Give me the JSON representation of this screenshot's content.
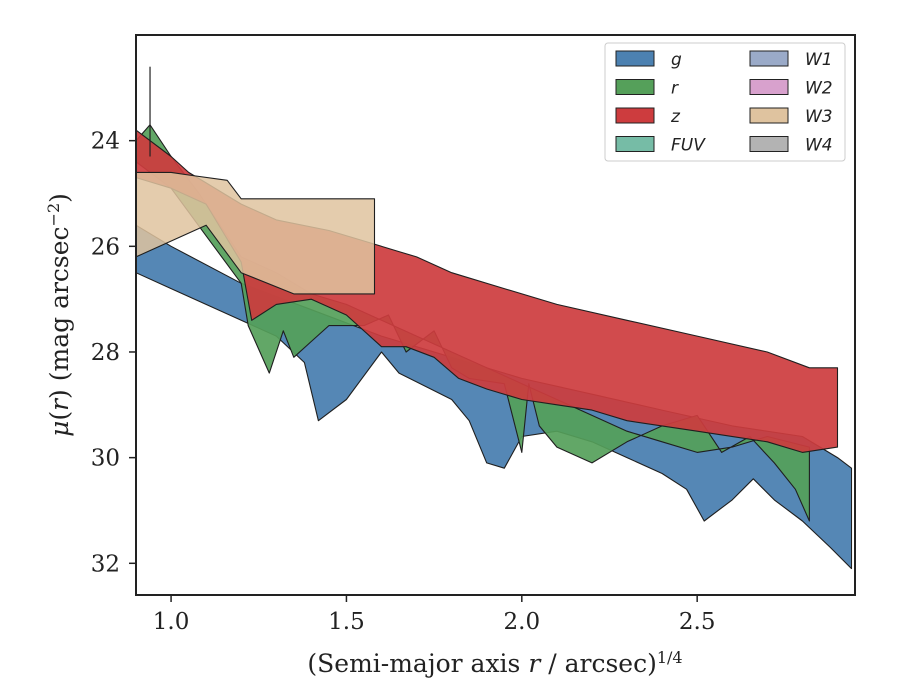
{
  "chart_data": {
    "type": "area",
    "xlabel": "(Semi-major axis r / arcsec)^{1/4}",
    "xlabel_parts": {
      "pre": "(Semi-major axis ",
      "var": "r",
      "post": " / arcsec)",
      "sup": "1/4"
    },
    "ylabel": "μ(r) (mag arcsec^{-2})",
    "ylabel_parts": {
      "mu": "μ",
      "paren_open": "(",
      "var": "r",
      "paren_close": ")",
      "unit": " (mag arcsec",
      "sup": "−2",
      "close": ")"
    },
    "xlim": [
      0.9,
      2.95
    ],
    "ylim": [
      32.6,
      22.0
    ],
    "y_inverted": true,
    "xticks": [
      1.0,
      1.5,
      2.0,
      2.5
    ],
    "xtick_labels": [
      "1.0",
      "1.5",
      "2.0",
      "2.5"
    ],
    "yticks": [
      24,
      26,
      28,
      30,
      32
    ],
    "ytick_labels": [
      "24",
      "26",
      "28",
      "30",
      "32"
    ],
    "grid": false,
    "legend": {
      "placement": "top-right",
      "columns": 2
    },
    "series": [
      {
        "name": "g",
        "color": "#4c81b1",
        "upper": [
          [
            0.9,
            25.6
          ],
          [
            1.0,
            26.0
          ],
          [
            1.2,
            26.7
          ],
          [
            1.4,
            27.2
          ],
          [
            1.6,
            27.7
          ],
          [
            1.8,
            28.1
          ],
          [
            2.0,
            28.5
          ],
          [
            2.2,
            28.8
          ],
          [
            2.4,
            29.1
          ],
          [
            2.6,
            29.4
          ],
          [
            2.8,
            29.6
          ],
          [
            2.9,
            30.0
          ],
          [
            2.94,
            30.2
          ]
        ],
        "lower": [
          [
            0.9,
            26.5
          ],
          [
            1.0,
            26.8
          ],
          [
            1.2,
            27.4
          ],
          [
            1.3,
            27.7
          ],
          [
            1.38,
            28.2
          ],
          [
            1.42,
            29.3
          ],
          [
            1.5,
            28.9
          ],
          [
            1.6,
            28.0
          ],
          [
            1.65,
            28.4
          ],
          [
            1.8,
            28.9
          ],
          [
            1.85,
            29.3
          ],
          [
            1.9,
            30.1
          ],
          [
            1.95,
            30.2
          ],
          [
            2.0,
            29.6
          ],
          [
            2.1,
            29.5
          ],
          [
            2.2,
            29.7
          ],
          [
            2.3,
            30.0
          ],
          [
            2.4,
            30.3
          ],
          [
            2.47,
            30.6
          ],
          [
            2.52,
            31.2
          ],
          [
            2.6,
            30.8
          ],
          [
            2.66,
            30.4
          ],
          [
            2.72,
            30.8
          ],
          [
            2.8,
            31.2
          ],
          [
            2.88,
            31.7
          ],
          [
            2.94,
            32.1
          ]
        ]
      },
      {
        "name": "r",
        "color": "#55a05a",
        "upper": [
          [
            0.9,
            24.0
          ],
          [
            0.94,
            23.7
          ],
          [
            1.0,
            24.3
          ],
          [
            1.08,
            25.0
          ],
          [
            1.15,
            25.7
          ],
          [
            1.2,
            26.2
          ],
          [
            1.3,
            26.5
          ],
          [
            1.4,
            26.9
          ],
          [
            1.5,
            27.1
          ],
          [
            1.6,
            27.4
          ],
          [
            1.7,
            27.7
          ],
          [
            1.8,
            28.0
          ],
          [
            1.9,
            28.3
          ],
          [
            2.0,
            28.6
          ],
          [
            2.1,
            28.9
          ],
          [
            2.2,
            29.2
          ],
          [
            2.3,
            29.5
          ],
          [
            2.4,
            29.7
          ],
          [
            2.5,
            29.9
          ],
          [
            2.6,
            29.8
          ],
          [
            2.7,
            29.6
          ],
          [
            2.82,
            29.8
          ]
        ],
        "lower": [
          [
            0.9,
            24.4
          ],
          [
            1.0,
            24.9
          ],
          [
            1.1,
            25.8
          ],
          [
            1.2,
            26.7
          ],
          [
            1.22,
            27.5
          ],
          [
            1.28,
            28.4
          ],
          [
            1.32,
            27.6
          ],
          [
            1.35,
            28.1
          ],
          [
            1.4,
            27.8
          ],
          [
            1.45,
            27.5
          ],
          [
            1.55,
            27.5
          ],
          [
            1.62,
            27.3
          ],
          [
            1.67,
            28.0
          ],
          [
            1.75,
            27.6
          ],
          [
            1.8,
            28.3
          ],
          [
            1.85,
            28.5
          ],
          [
            1.95,
            28.6
          ],
          [
            2.0,
            29.9
          ],
          [
            2.02,
            28.6
          ],
          [
            2.05,
            29.4
          ],
          [
            2.1,
            29.8
          ],
          [
            2.2,
            30.1
          ],
          [
            2.3,
            29.7
          ],
          [
            2.4,
            29.4
          ],
          [
            2.5,
            29.2
          ],
          [
            2.57,
            29.9
          ],
          [
            2.65,
            29.6
          ],
          [
            2.72,
            30.1
          ],
          [
            2.78,
            30.6
          ],
          [
            2.82,
            31.2
          ]
        ]
      },
      {
        "name": "z",
        "color": "#cd3c3e",
        "upper": [
          [
            0.9,
            23.8
          ],
          [
            1.0,
            24.3
          ],
          [
            1.05,
            24.6
          ],
          [
            1.1,
            24.8
          ],
          [
            1.2,
            25.2
          ],
          [
            1.3,
            25.5
          ],
          [
            1.45,
            25.7
          ],
          [
            1.55,
            25.9
          ],
          [
            1.65,
            26.1
          ],
          [
            1.7,
            26.2
          ],
          [
            1.8,
            26.5
          ],
          [
            1.95,
            26.8
          ],
          [
            2.1,
            27.1
          ],
          [
            2.3,
            27.4
          ],
          [
            2.5,
            27.7
          ],
          [
            2.7,
            28.0
          ],
          [
            2.82,
            28.3
          ],
          [
            2.9,
            28.3
          ]
        ],
        "lower": [
          [
            0.9,
            24.7
          ],
          [
            1.0,
            24.9
          ],
          [
            1.1,
            25.2
          ],
          [
            1.2,
            26.3
          ],
          [
            1.23,
            27.4
          ],
          [
            1.3,
            27.1
          ],
          [
            1.4,
            27.0
          ],
          [
            1.5,
            27.3
          ],
          [
            1.6,
            27.9
          ],
          [
            1.67,
            27.9
          ],
          [
            1.75,
            28.1
          ],
          [
            1.82,
            28.5
          ],
          [
            1.9,
            28.7
          ],
          [
            2.0,
            28.9
          ],
          [
            2.1,
            29.0
          ],
          [
            2.2,
            29.1
          ],
          [
            2.3,
            29.3
          ],
          [
            2.5,
            29.5
          ],
          [
            2.7,
            29.7
          ],
          [
            2.8,
            29.9
          ],
          [
            2.9,
            29.8
          ]
        ]
      },
      {
        "name": "FUV",
        "color": "#76bca6"
      },
      {
        "name": "W1",
        "color": "#9aaac8"
      },
      {
        "name": "W2",
        "color": "#d8a1cd"
      },
      {
        "name": "W3",
        "color": "#dfc39f",
        "upper": [
          [
            0.9,
            24.6
          ],
          [
            1.0,
            24.6
          ],
          [
            1.05,
            24.65
          ],
          [
            1.16,
            24.75
          ],
          [
            1.2,
            25.1
          ],
          [
            1.4,
            25.1
          ],
          [
            1.58,
            25.1
          ]
        ],
        "lower": [
          [
            0.9,
            26.2
          ],
          [
            1.1,
            25.6
          ],
          [
            1.2,
            26.5
          ],
          [
            1.35,
            26.9
          ],
          [
            1.58,
            26.9
          ]
        ]
      },
      {
        "name": "W4",
        "color": "#b3b3b3"
      }
    ],
    "errorbar": {
      "x": 0.94,
      "y_low": 22.6,
      "y_high": 24.3
    }
  }
}
